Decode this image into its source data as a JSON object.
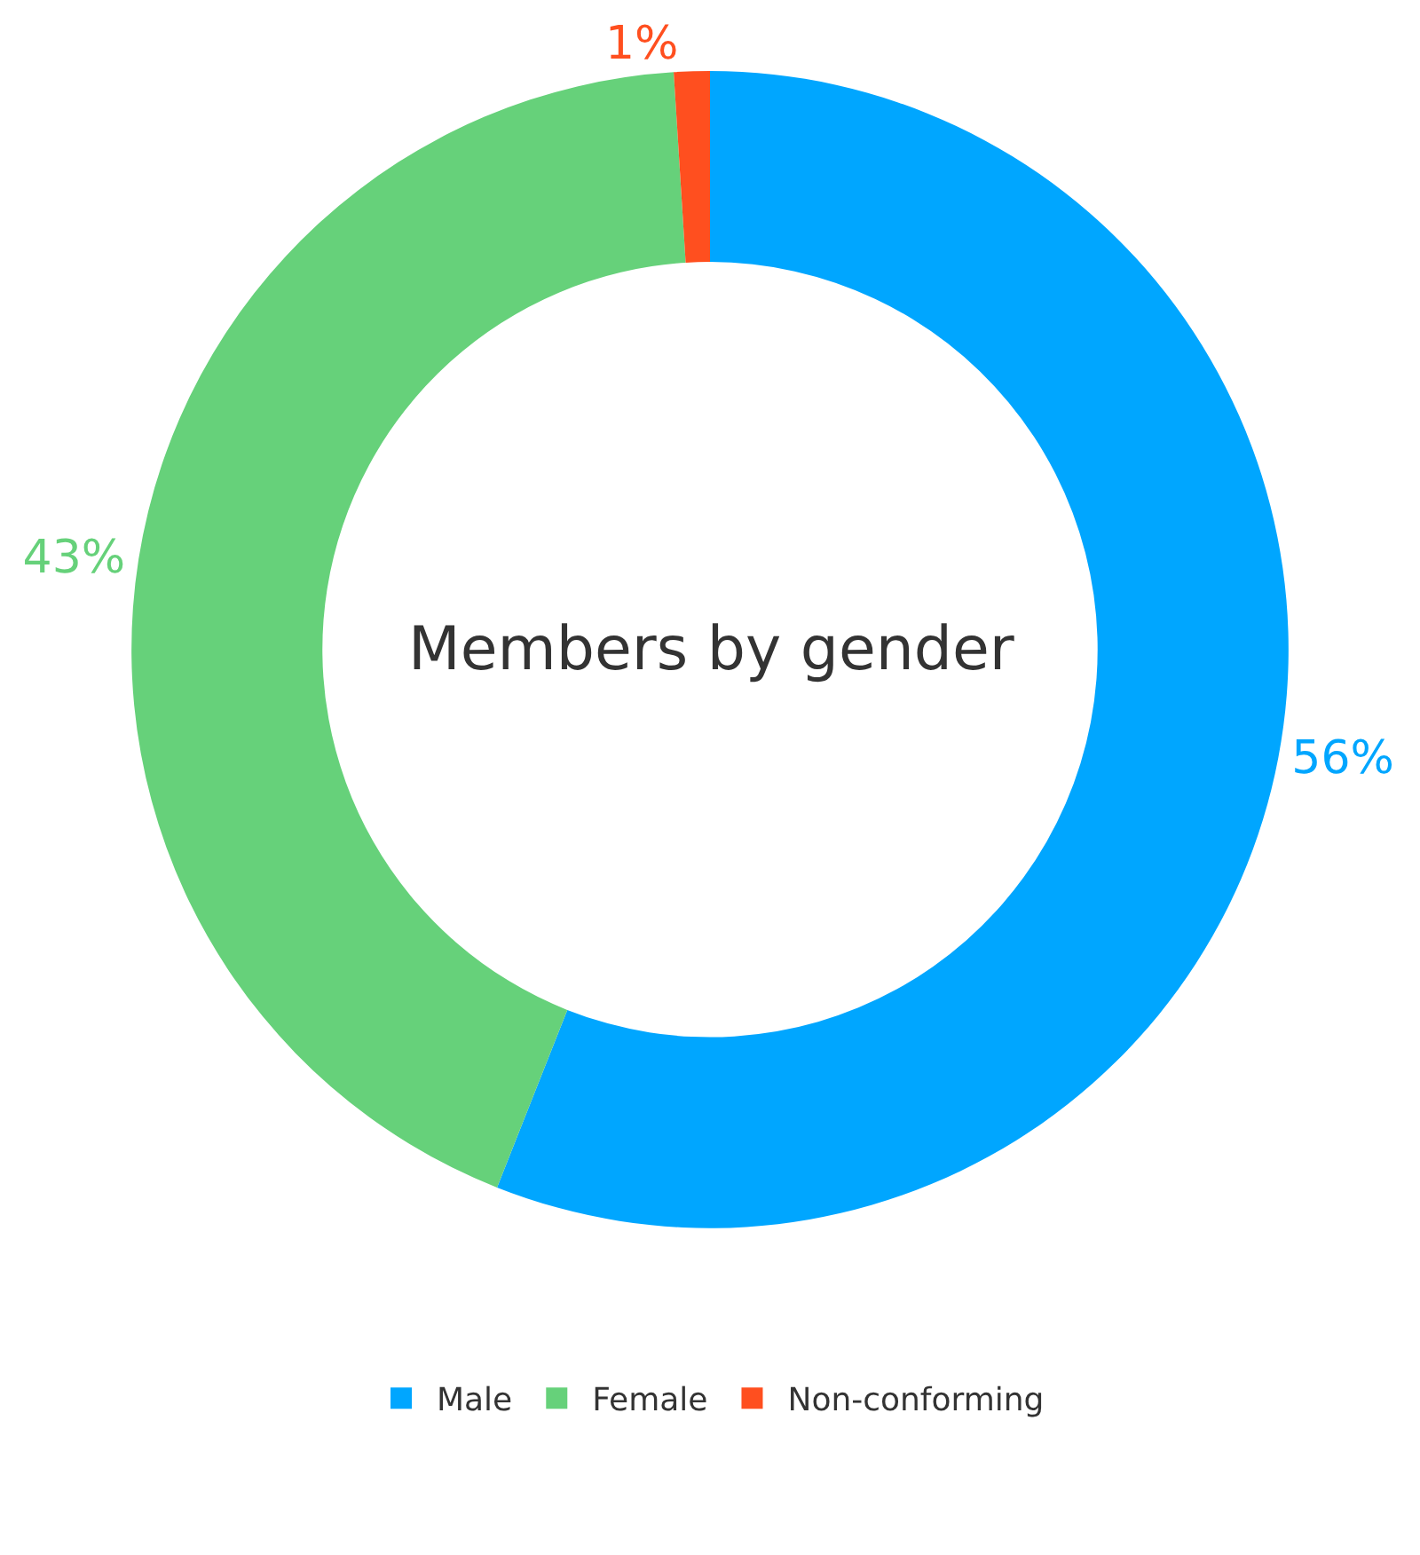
{
  "chart_data": {
    "type": "donut",
    "title": "Members by gender",
    "categories": [
      "Male",
      "Female",
      "Non-conforming"
    ],
    "values": [
      56,
      43,
      1
    ],
    "value_labels": [
      "56%",
      "43%",
      "1%"
    ],
    "colors": [
      "#00a6ff",
      "#66d17a",
      "#ff4f1f"
    ],
    "legend": "bottom"
  }
}
